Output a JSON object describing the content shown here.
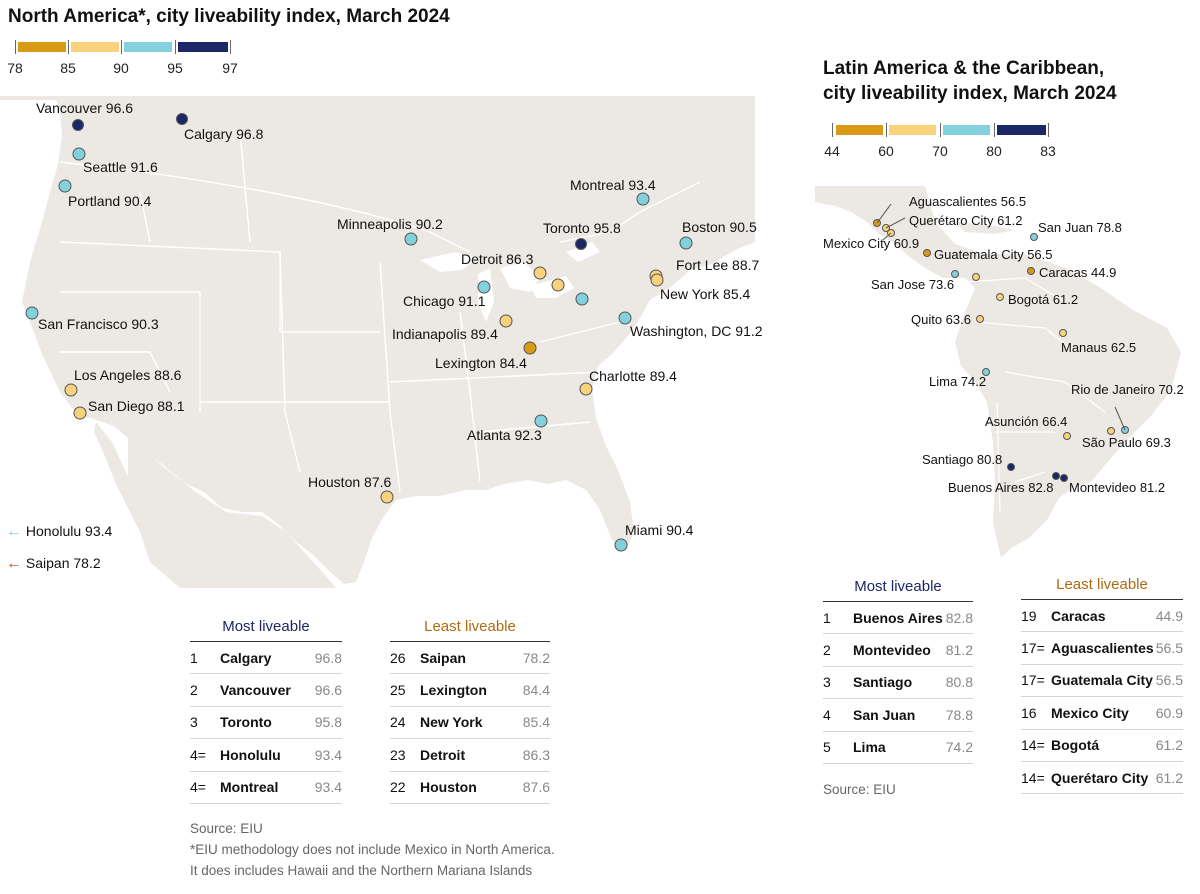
{
  "north_america": {
    "title": "North America*, city liveability index, March 2024",
    "legend": {
      "ticks": [
        "78",
        "85",
        "90",
        "95",
        "97"
      ],
      "colors": [
        "#d99a17",
        "#f9d27c",
        "#82d1dd",
        "#1b2766"
      ]
    },
    "cities": [
      {
        "name": "Vancouver",
        "value": "96.6",
        "label": "Vancouver 96.6"
      },
      {
        "name": "Calgary",
        "value": "96.8",
        "label": "Calgary 96.8"
      },
      {
        "name": "Seattle",
        "value": "91.6",
        "label": "Seattle 91.6"
      },
      {
        "name": "Portland",
        "value": "90.4",
        "label": "Portland 90.4"
      },
      {
        "name": "San Francisco",
        "value": "90.3",
        "label": "San Francisco 90.3"
      },
      {
        "name": "Los Angeles",
        "value": "88.6",
        "label": "Los Angeles 88.6"
      },
      {
        "name": "San Diego",
        "value": "88.1",
        "label": "San Diego 88.1"
      },
      {
        "name": "Minneapolis",
        "value": "90.2",
        "label": "Minneapolis 90.2"
      },
      {
        "name": "Detroit",
        "value": "86.3",
        "label": "Detroit 86.3"
      },
      {
        "name": "Chicago",
        "value": "91.1",
        "label": "Chicago 91.1"
      },
      {
        "name": "Indianapolis",
        "value": "89.4",
        "label": "Indianapolis 89.4"
      },
      {
        "name": "Lexington",
        "value": "84.4",
        "label": "Lexington 84.4"
      },
      {
        "name": "Toronto",
        "value": "95.8",
        "label": "Toronto 95.8"
      },
      {
        "name": "Montreal",
        "value": "93.4",
        "label": "Montreal 93.4"
      },
      {
        "name": "Boston",
        "value": "90.5",
        "label": "Boston 90.5"
      },
      {
        "name": "Fort Lee",
        "value": "88.7",
        "label": "Fort Lee 88.7"
      },
      {
        "name": "New York",
        "value": "85.4",
        "label": "New York 85.4"
      },
      {
        "name": "Washington, DC",
        "value": "91.2",
        "label": "Washington, DC 91.2"
      },
      {
        "name": "Charlotte",
        "value": "89.4",
        "label": "Charlotte 89.4"
      },
      {
        "name": "Atlanta",
        "value": "92.3",
        "label": "Atlanta 92.3"
      },
      {
        "name": "Houston",
        "value": "87.6",
        "label": "Houston 87.6"
      },
      {
        "name": "Miami",
        "value": "90.4",
        "label": "Miami 90.4"
      }
    ],
    "offmap": [
      {
        "label": "Honolulu 93.4",
        "arrow": "←",
        "color": "#82d1dd"
      },
      {
        "label": "Saipan 78.2",
        "arrow": "←",
        "color": "#c2461c"
      }
    ],
    "most_header": "Most liveable",
    "least_header": "Least liveable",
    "most": [
      {
        "rank": "1",
        "city": "Calgary",
        "value": "96.8"
      },
      {
        "rank": "2",
        "city": "Vancouver",
        "value": "96.6"
      },
      {
        "rank": "3",
        "city": "Toronto",
        "value": "95.8"
      },
      {
        "rank": "4=",
        "city": "Honolulu",
        "value": "93.4"
      },
      {
        "rank": "4=",
        "city": "Montreal",
        "value": "93.4"
      }
    ],
    "least": [
      {
        "rank": "26",
        "city": "Saipan",
        "value": "78.2"
      },
      {
        "rank": "25",
        "city": "Lexington",
        "value": "84.4"
      },
      {
        "rank": "24",
        "city": "New York",
        "value": "85.4"
      },
      {
        "rank": "23",
        "city": "Detroit",
        "value": "86.3"
      },
      {
        "rank": "22",
        "city": "Houston",
        "value": "87.6"
      }
    ],
    "source": "Source: EIU",
    "footnote1": "*EIU methodology does not include Mexico in North America.",
    "footnote2": "It does includes Hawaii and the Northern Mariana Islands"
  },
  "latin_america": {
    "title1": "Latin America & the Caribbean,",
    "title2": "city liveability index, March 2024",
    "legend": {
      "ticks": [
        "44",
        "60",
        "70",
        "80",
        "83"
      ],
      "colors": [
        "#d99a17",
        "#f9d27c",
        "#82d1dd",
        "#1b2766"
      ]
    },
    "cities": [
      {
        "name": "Aguascalientes",
        "value": "56.5",
        "label": "Aguascalientes 56.5"
      },
      {
        "name": "Querétaro City",
        "value": "61.2",
        "label": "Querétaro City 61.2"
      },
      {
        "name": "San Juan",
        "value": "78.8",
        "label": "San Juan 78.8"
      },
      {
        "name": "Mexico City",
        "value": "60.9",
        "label": "Mexico City 60.9"
      },
      {
        "name": "Guatemala City",
        "value": "56.5",
        "label": "Guatemala City 56.5"
      },
      {
        "name": "Caracas",
        "value": "44.9",
        "label": "Caracas 44.9"
      },
      {
        "name": "San Jose",
        "value": "73.6",
        "label": "San Jose 73.6"
      },
      {
        "name": "Bogotá",
        "value": "61.2",
        "label": "Bogotá 61.2"
      },
      {
        "name": "Quito",
        "value": "63.6",
        "label": "Quito 63.6"
      },
      {
        "name": "Manaus",
        "value": "62.5",
        "label": "Manaus 62.5"
      },
      {
        "name": "Lima",
        "value": "74.2",
        "label": "Lima 74.2"
      },
      {
        "name": "Rio de Janeiro",
        "value": "70.2",
        "label": "Rio de Janeiro 70.2"
      },
      {
        "name": "Asunción",
        "value": "66.4",
        "label": "Asunción 66.4"
      },
      {
        "name": "São Paulo",
        "value": "69.3",
        "label": "São Paulo 69.3"
      },
      {
        "name": "Santiago",
        "value": "80.8",
        "label": "Santiago 80.8"
      },
      {
        "name": "Buenos Aires",
        "value": "82.8",
        "label": "Buenos Aires 82.8"
      },
      {
        "name": "Montevideo",
        "value": "81.2",
        "label": "Montevideo 81.2"
      }
    ],
    "most_header": "Most liveable",
    "least_header": "Least liveable",
    "most": [
      {
        "rank": "1",
        "city": "Buenos Aires",
        "value": "82.8"
      },
      {
        "rank": "2",
        "city": "Montevideo",
        "value": "81.2"
      },
      {
        "rank": "3",
        "city": "Santiago",
        "value": "80.8"
      },
      {
        "rank": "4",
        "city": "San Juan",
        "value": "78.8"
      },
      {
        "rank": "5",
        "city": "Lima",
        "value": "74.2"
      }
    ],
    "least": [
      {
        "rank": "19",
        "city": "Caracas",
        "value": "44.9"
      },
      {
        "rank": "17=",
        "city": "Aguascalientes",
        "value": "56.5"
      },
      {
        "rank": "17=",
        "city": "Guatemala City",
        "value": "56.5"
      },
      {
        "rank": "16",
        "city": "Mexico City",
        "value": "60.9"
      },
      {
        "rank": "14=",
        "city": "Bogotá",
        "value": "61.2"
      },
      {
        "rank": "14=",
        "city": "Querétaro City",
        "value": "61.2"
      }
    ],
    "source": "Source: EIU"
  },
  "colors": {
    "most_header": "#1b2766",
    "least_header": "#b06a14",
    "land": "#ece9e4",
    "offmap_arrow_cold": "#82d1dd",
    "offmap_arrow_warm": "#c2461c"
  }
}
